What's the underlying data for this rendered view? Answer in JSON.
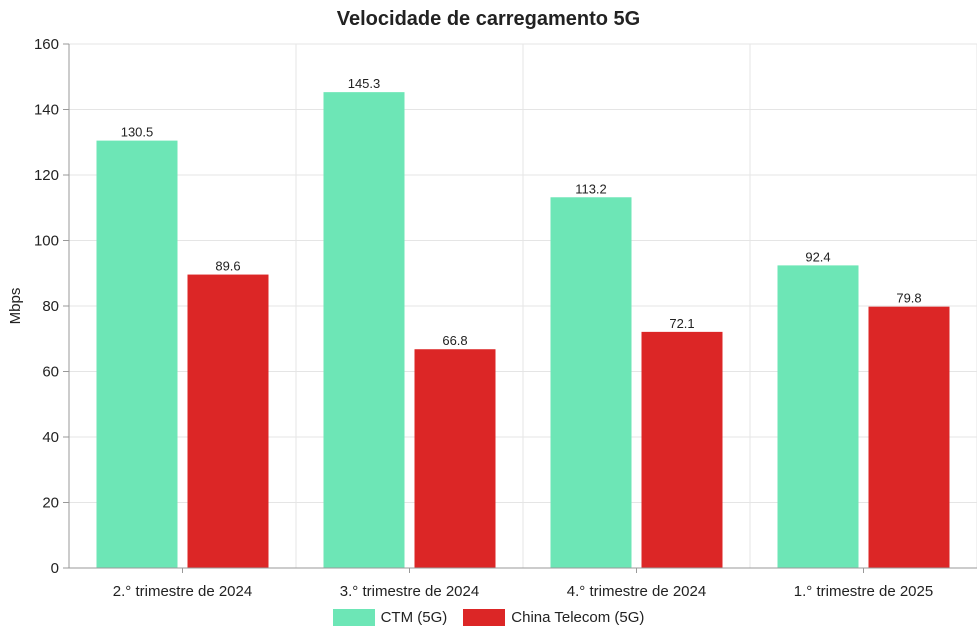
{
  "chart_data": {
    "type": "bar",
    "title": "Velocidade de carregamento 5G",
    "xlabel": "",
    "ylabel": "Mbps",
    "ylim": [
      0,
      160
    ],
    "yticks": [
      0,
      20,
      40,
      60,
      80,
      100,
      120,
      140,
      160
    ],
    "categories": [
      "2.°  trimestre de 2024",
      "3.°  trimestre de 2024",
      "4.°  trimestre de 2024",
      "1.°  trimestre de 2025"
    ],
    "series": [
      {
        "name": "CTM (5G)",
        "color": "#6de6b6",
        "values": [
          130.5,
          145.3,
          113.2,
          92.4
        ],
        "labels": [
          "130.5",
          "145.3",
          "113.2",
          "92.4"
        ]
      },
      {
        "name": "China Telecom (5G)",
        "color": "#dc2626",
        "values": [
          89.6,
          66.8,
          72.1,
          79.8
        ],
        "labels": [
          "89.6",
          "66.8",
          "72.1",
          "79.8"
        ]
      }
    ],
    "grid": true,
    "legend_position": "bottom"
  }
}
